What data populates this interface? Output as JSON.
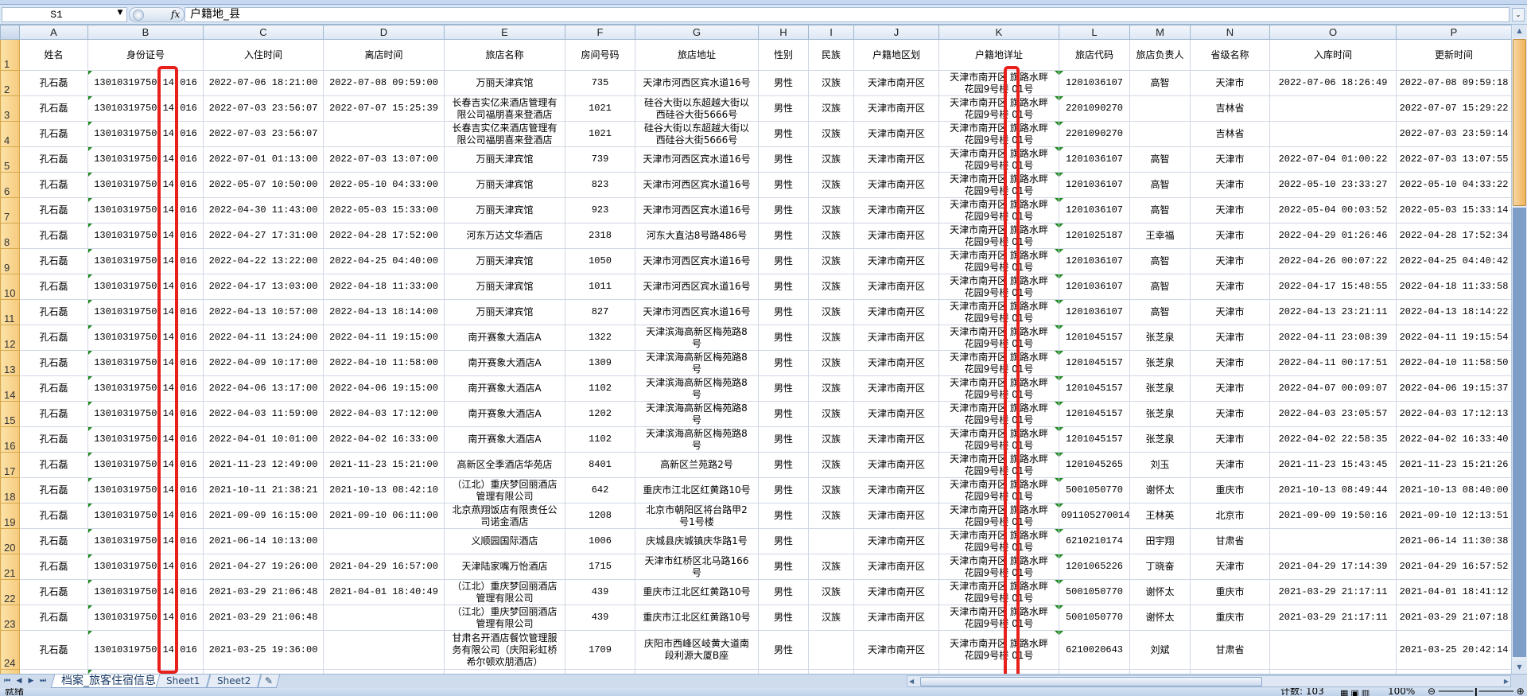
{
  "formula_bar": {
    "name_box": "S1",
    "fx_label": "fx",
    "formula": "户籍地_县"
  },
  "columns": [
    "A",
    "B",
    "C",
    "D",
    "E",
    "F",
    "G",
    "H",
    "I",
    "J",
    "K",
    "L",
    "M",
    "N",
    "O",
    "P"
  ],
  "headers": [
    "姓名",
    "身份证号",
    "入住时间",
    "离店时间",
    "旅店名称",
    "房间号码",
    "旅店地址",
    "性别",
    "民族",
    "户籍地区划",
    "户籍地详址",
    "旅店代码",
    "旅店负责人",
    "省级名称",
    "入库时间",
    "更新时间"
  ],
  "rows": [
    {
      "n": "2",
      "cells": [
        "孔石磊",
        "13010319750 14 016",
        "2022-07-06 18:21:00",
        "2022-07-08 09:59:00",
        "万丽天津宾馆",
        "735",
        "天津市河西区宾水道16号",
        "男性",
        "汉族",
        "天津市南开区",
        "天津市南开区 旗路水畔\n花园9号楼 01号",
        "1201036107",
        "高智",
        "天津市",
        "2022-07-06 18:26:49",
        "2022-07-08 09:59:18"
      ]
    },
    {
      "n": "3",
      "cells": [
        "孔石磊",
        "13010319750 14 016",
        "2022-07-03 23:56:07",
        "2022-07-07 15:25:39",
        "长春吉实亿来酒店管理有\n限公司福朋喜来登酒店",
        "1021",
        "硅谷大街以东超越大街以\n西硅谷大街5666号",
        "男性",
        "汉族",
        "天津市南开区",
        "天津市南开区 旗路水畔\n花园9号楼 01号",
        "2201090270",
        "",
        "吉林省",
        "",
        "2022-07-07 15:29:22"
      ]
    },
    {
      "n": "4",
      "cells": [
        "孔石磊",
        "13010319750 14 016",
        "2022-07-03 23:56:07",
        "",
        "长春吉实亿来酒店管理有\n限公司福朋喜来登酒店",
        "1021",
        "硅谷大街以东超越大街以\n西硅谷大街5666号",
        "男性",
        "汉族",
        "天津市南开区",
        "天津市南开区 旗路水畔\n花园9号楼 01号",
        "2201090270",
        "",
        "吉林省",
        "",
        "2022-07-03 23:59:14"
      ]
    },
    {
      "n": "5",
      "cells": [
        "孔石磊",
        "13010319750 14 016",
        "2022-07-01 01:13:00",
        "2022-07-03 13:07:00",
        "万丽天津宾馆",
        "739",
        "天津市河西区宾水道16号",
        "男性",
        "汉族",
        "天津市南开区",
        "天津市南开区 旗路水畔\n花园9号楼 01号",
        "1201036107",
        "高智",
        "天津市",
        "2022-07-04 01:00:22",
        "2022-07-03 13:07:55"
      ]
    },
    {
      "n": "6",
      "cells": [
        "孔石磊",
        "13010319750 14 016",
        "2022-05-07 10:50:00",
        "2022-05-10 04:33:00",
        "万丽天津宾馆",
        "823",
        "天津市河西区宾水道16号",
        "男性",
        "汉族",
        "天津市南开区",
        "天津市南开区 旗路水畔\n花园9号楼 01号",
        "1201036107",
        "高智",
        "天津市",
        "2022-05-10 23:33:27",
        "2022-05-10 04:33:22"
      ]
    },
    {
      "n": "7",
      "cells": [
        "孔石磊",
        "13010319750 14 016",
        "2022-04-30 11:43:00",
        "2022-05-03 15:33:00",
        "万丽天津宾馆",
        "923",
        "天津市河西区宾水道16号",
        "男性",
        "汉族",
        "天津市南开区",
        "天津市南开区 旗路水畔\n花园9号楼 01号",
        "1201036107",
        "高智",
        "天津市",
        "2022-05-04 00:03:52",
        "2022-05-03 15:33:14"
      ]
    },
    {
      "n": "8",
      "cells": [
        "孔石磊",
        "13010319750 14 016",
        "2022-04-27 17:31:00",
        "2022-04-28 17:52:00",
        "河东万达文华酒店",
        "2318",
        "河东大直沽8号路486号",
        "男性",
        "汉族",
        "天津市南开区",
        "天津市南开区 旗路水畔\n花园9号楼 01号",
        "1201025187",
        "王幸福",
        "天津市",
        "2022-04-29 01:26:46",
        "2022-04-28 17:52:34"
      ]
    },
    {
      "n": "9",
      "cells": [
        "孔石磊",
        "13010319750 14 016",
        "2022-04-22 13:22:00",
        "2022-04-25 04:40:00",
        "万丽天津宾馆",
        "1050",
        "天津市河西区宾水道16号",
        "男性",
        "汉族",
        "天津市南开区",
        "天津市南开区 旗路水畔\n花园9号楼 01号",
        "1201036107",
        "高智",
        "天津市",
        "2022-04-26 00:07:22",
        "2022-04-25 04:40:42"
      ]
    },
    {
      "n": "10",
      "cells": [
        "孔石磊",
        "13010319750 14 016",
        "2022-04-17 13:03:00",
        "2022-04-18 11:33:00",
        "万丽天津宾馆",
        "1011",
        "天津市河西区宾水道16号",
        "男性",
        "汉族",
        "天津市南开区",
        "天津市南开区 旗路水畔\n花园9号楼 01号",
        "1201036107",
        "高智",
        "天津市",
        "2022-04-17 15:48:55",
        "2022-04-18 11:33:58"
      ]
    },
    {
      "n": "11",
      "cells": [
        "孔石磊",
        "13010319750 14 016",
        "2022-04-13 10:57:00",
        "2022-04-13 18:14:00",
        "万丽天津宾馆",
        "827",
        "天津市河西区宾水道16号",
        "男性",
        "汉族",
        "天津市南开区",
        "天津市南开区 旗路水畔\n花园9号楼 01号",
        "1201036107",
        "高智",
        "天津市",
        "2022-04-13 23:21:11",
        "2022-04-13 18:14:22"
      ]
    },
    {
      "n": "12",
      "cells": [
        "孔石磊",
        "13010319750 14 016",
        "2022-04-11 13:24:00",
        "2022-04-11 19:15:00",
        "南开赛象大酒店A",
        "1322",
        "天津滨海高新区梅苑路8\n号",
        "男性",
        "汉族",
        "天津市南开区",
        "天津市南开区 旗路水畔\n花园9号楼 01号",
        "1201045157",
        "张芝泉",
        "天津市",
        "2022-04-11 23:08:39",
        "2022-04-11 19:15:54"
      ]
    },
    {
      "n": "13",
      "cells": [
        "孔石磊",
        "13010319750 14 016",
        "2022-04-09 10:17:00",
        "2022-04-10 11:58:00",
        "南开赛象大酒店A",
        "1309",
        "天津滨海高新区梅苑路8\n号",
        "男性",
        "汉族",
        "天津市南开区",
        "天津市南开区 旗路水畔\n花园9号楼 01号",
        "1201045157",
        "张芝泉",
        "天津市",
        "2022-04-11 00:17:51",
        "2022-04-10 11:58:50"
      ]
    },
    {
      "n": "14",
      "cells": [
        "孔石磊",
        "13010319750 14 016",
        "2022-04-06 13:17:00",
        "2022-04-06 19:15:00",
        "南开赛象大酒店A",
        "1102",
        "天津滨海高新区梅苑路8\n号",
        "男性",
        "汉族",
        "天津市南开区",
        "天津市南开区 旗路水畔\n花园9号楼 01号",
        "1201045157",
        "张芝泉",
        "天津市",
        "2022-04-07 00:09:07",
        "2022-04-06 19:15:37"
      ]
    },
    {
      "n": "15",
      "cells": [
        "孔石磊",
        "13010319750 14 016",
        "2022-04-03 11:59:00",
        "2022-04-03 17:12:00",
        "南开赛象大酒店A",
        "1202",
        "天津滨海高新区梅苑路8\n号",
        "男性",
        "汉族",
        "天津市南开区",
        "天津市南开区 旗路水畔\n花园9号楼 01号",
        "1201045157",
        "张芝泉",
        "天津市",
        "2022-04-03 23:05:57",
        "2022-04-03 17:12:13"
      ]
    },
    {
      "n": "16",
      "cells": [
        "孔石磊",
        "13010319750 14 016",
        "2022-04-01 10:01:00",
        "2022-04-02 16:33:00",
        "南开赛象大酒店A",
        "1102",
        "天津滨海高新区梅苑路8\n号",
        "男性",
        "汉族",
        "天津市南开区",
        "天津市南开区 旗路水畔\n花园9号楼 01号",
        "1201045157",
        "张芝泉",
        "天津市",
        "2022-04-02 22:58:35",
        "2022-04-02 16:33:40"
      ]
    },
    {
      "n": "17",
      "cells": [
        "孔石磊",
        "13010319750 14 016",
        "2021-11-23 12:49:00",
        "2021-11-23 15:21:00",
        "高新区全季酒店华苑店",
        "8401",
        "高新区兰苑路2号",
        "男性",
        "汉族",
        "天津市南开区",
        "天津市南开区 旗路水畔\n花园9号楼 01号",
        "1201045265",
        "刘玉",
        "天津市",
        "2021-11-23 15:43:45",
        "2021-11-23 15:21:26"
      ]
    },
    {
      "n": "18",
      "cells": [
        "孔石磊",
        "13010319750 14 016",
        "2021-10-11 21:38:21",
        "2021-10-13 08:42:10",
        "（江北）重庆梦回丽酒店\n管理有限公司",
        "642",
        "重庆市江北区红黄路10号",
        "男性",
        "汉族",
        "天津市南开区",
        "天津市南开区 旗路水畔\n花园9号楼 01号",
        "5001050770",
        "谢怀太",
        "重庆市",
        "2021-10-13 08:49:44",
        "2021-10-13 08:40:00"
      ]
    },
    {
      "n": "19",
      "cells": [
        "孔石磊",
        "13010319750 14 016",
        "2021-09-09 16:15:00",
        "2021-09-10 06:11:00",
        "北京燕翔饭店有限责任公\n司诺金酒店",
        "1208",
        "北京市朝阳区将台路甲2\n号1号楼",
        "男性",
        "汉族",
        "天津市南开区",
        "天津市南开区 旗路水畔\n花园9号楼 01号",
        "091105270014",
        "王林英",
        "北京市",
        "2021-09-09 19:50:16",
        "2021-09-10 12:13:51"
      ]
    },
    {
      "n": "20",
      "cells": [
        "孔石磊",
        "13010319750 14 016",
        "2021-06-14 10:13:00",
        "",
        "义顺园国际酒店",
        "1006",
        "庆城县庆城镇庆华路1号",
        "男性",
        "",
        "天津市南开区",
        "天津市南开区 旗路水畔\n花园9号楼 01号",
        "6210210174",
        "田宇翔",
        "甘肃省",
        "",
        "2021-06-14 11:30:38"
      ]
    },
    {
      "n": "21",
      "cells": [
        "孔石磊",
        "13010319750 14 016",
        "2021-04-27 19:26:00",
        "2021-04-29 16:57:00",
        "天津陆家嘴万怡酒店",
        "1715",
        "天津市红桥区北马路166\n号",
        "男性",
        "汉族",
        "天津市南开区",
        "天津市南开区 旗路水畔\n花园9号楼 01号",
        "1201065226",
        "丁晓奋",
        "天津市",
        "2021-04-29 17:14:39",
        "2021-04-29 16:57:52"
      ]
    },
    {
      "n": "22",
      "cells": [
        "孔石磊",
        "13010319750 14 016",
        "2021-03-29 21:06:48",
        "2021-04-01 18:40:49",
        "（江北）重庆梦回丽酒店\n管理有限公司",
        "439",
        "重庆市江北区红黄路10号",
        "男性",
        "汉族",
        "天津市南开区",
        "天津市南开区 旗路水畔\n花园9号楼 01号",
        "5001050770",
        "谢怀太",
        "重庆市",
        "2021-03-29 21:17:11",
        "2021-04-01 18:41:12"
      ]
    },
    {
      "n": "23",
      "cells": [
        "孔石磊",
        "13010319750 14 016",
        "2021-03-29 21:06:48",
        "",
        "（江北）重庆梦回丽酒店\n管理有限公司",
        "439",
        "重庆市江北区红黄路10号",
        "男性",
        "汉族",
        "天津市南开区",
        "天津市南开区 旗路水畔\n花园9号楼 01号",
        "5001050770",
        "谢怀太",
        "重庆市",
        "2021-03-29 21:17:11",
        "2021-03-29 21:07:18"
      ]
    },
    {
      "n": "24",
      "cells": [
        "孔石磊",
        "13010319750 14 016",
        "2021-03-25 19:36:00",
        "",
        "甘肃名开酒店餐饮管理服\n务有限公司（庆阳彩虹桥\n希尔顿欢朋酒店）",
        "1709",
        "庆阳市西峰区岐黄大道南\n段利源大厦B座",
        "男性",
        "",
        "天津市南开区",
        "天津市南开区 旗路水畔\n花园9号楼 01号",
        "6210020643",
        "刘斌",
        "甘肃省",
        "",
        "2021-03-25 20:42:14"
      ]
    }
  ],
  "sheet_tabs": [
    "档案_旅客住宿信息",
    "Sheet1",
    "Sheet2"
  ],
  "status_bar": {
    "ready": "就绪",
    "count": "计数: 103",
    "zoom": "100%"
  },
  "colors": {
    "highlight": "#e8201c",
    "row_header_selected": "#f6c97c",
    "error_indicator": "#1f8a1f"
  }
}
